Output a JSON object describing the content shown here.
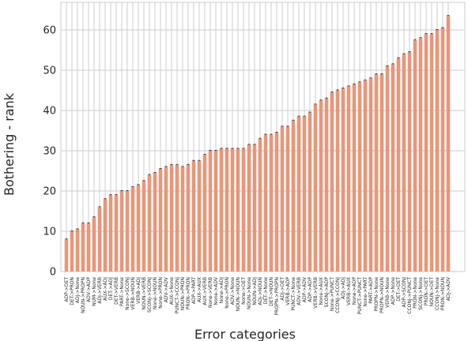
{
  "chart_data": {
    "type": "bar",
    "title": "",
    "xlabel": "Error categories",
    "ylabel": "Bothering - rank",
    "ylim": [
      0,
      66
    ],
    "yticks": [
      0,
      10,
      20,
      30,
      40,
      50,
      60
    ],
    "grid": true,
    "bar_color": "#e8967a",
    "categories": [
      "ADP->DET",
      "DET->PRON",
      "ADJ->None",
      "NOUN->PROPN",
      "ADV->ADP",
      "NUM->None",
      "ADJ->VERB",
      "AUX->ADJ",
      "DET->ADJ",
      "DET->VERB",
      "PART->None",
      "None->SCONJ",
      "VERB->NOUN",
      "VERB->ADJ",
      "NOUN->VERB",
      "SCONJ->SCONJ",
      "None->NOUN",
      "None->PRON",
      "ADV->ADV",
      "AUX->None",
      "PUNCT->CCONJ",
      "NOUN->PRON",
      "PRON->PRON",
      "ADP->PART",
      "AUX->AUX",
      "AUX->VERB",
      "None->VERB",
      "None->ADV",
      "None->ADJ",
      "None->PRON",
      "ADV->None",
      "NOUN->NOUN",
      "None->DET",
      "NOUN->None",
      "NOUN->ADJ",
      "ADJ->NOUN",
      "DET->None",
      "DET->NOUN",
      "PROPN->PROPN",
      "ADJ->DET",
      "VERB->ADP",
      "PUNCT->None",
      "ADV->VERB",
      "ADP->ADV",
      "ADP->ADP",
      "VERB->VERB",
      "None->AUX",
      "SCONJ->ADP",
      "None->PUNCT",
      "CCONJ->CCONJ",
      "ADJ->ADJ",
      "VERB->AUX",
      "None->ADP",
      "PUNCT->PUNCT",
      "None->PART",
      "PART->ADP",
      "PROPN->None",
      "PROPN->NOUN",
      "VERB->None",
      "ADP->None",
      "DET->DET",
      "ADP->SCONJ",
      "CCONJ->PUNCT",
      "PRON->None",
      "SCONJ->None",
      "PRON->DET",
      "NOUN->DET",
      "CCONJ->None",
      "PRON->NOUN",
      "ADJ->ADV"
    ],
    "values": [
      8.0,
      10.0,
      10.5,
      12.0,
      12.0,
      13.5,
      16.0,
      18.0,
      19.0,
      19.0,
      20.0,
      20.0,
      21.0,
      21.5,
      22.5,
      24.0,
      24.5,
      25.5,
      26.0,
      26.5,
      26.5,
      26.0,
      26.5,
      27.5,
      27.5,
      29.0,
      30.0,
      30.0,
      30.5,
      30.5,
      30.5,
      30.5,
      30.5,
      31.5,
      31.5,
      33.0,
      34.0,
      34.0,
      34.5,
      36.0,
      36.0,
      37.5,
      38.5,
      38.5,
      39.5,
      41.5,
      42.5,
      43.0,
      44.5,
      45.0,
      45.5,
      46.0,
      46.5,
      47.0,
      47.5,
      48.0,
      49.0,
      49.0,
      51.0,
      51.5,
      53.0,
      54.0,
      54.5,
      57.5,
      58.0,
      59.0,
      59.0,
      60.0,
      60.5,
      63.5
    ]
  }
}
